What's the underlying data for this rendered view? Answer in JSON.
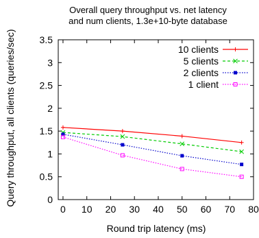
{
  "chart_data": {
    "type": "line",
    "title_lines": [
      "Overall query throughput vs. net latency",
      "and num clients, 1.3e+10-byte database"
    ],
    "xlabel": "Round trip latency (ms)",
    "ylabel": "Query throughput, all clients (queries/sec)",
    "xlim": [
      -2,
      80
    ],
    "ylim": [
      0,
      3.5
    ],
    "xticks": [
      "0",
      "10",
      "20",
      "30",
      "40",
      "50",
      "60",
      "70",
      "80"
    ],
    "yticks": [
      "0",
      "0.5",
      "1",
      "1.5",
      "2",
      "2.5",
      "3",
      "3.5"
    ],
    "grid": false,
    "legend_position": "top-right",
    "series": [
      {
        "name": "10 clients",
        "color": "#ff0000",
        "dash": "solid",
        "marker": "plus",
        "x": [
          0,
          25,
          50,
          75
        ],
        "y": [
          1.58,
          1.5,
          1.39,
          1.25
        ]
      },
      {
        "name": "5 clients",
        "color": "#00cc00",
        "dash": "dashed",
        "marker": "cross",
        "x": [
          0,
          25,
          50,
          75
        ],
        "y": [
          1.47,
          1.38,
          1.22,
          1.05
        ]
      },
      {
        "name": "2 clients",
        "color": "#0000cc",
        "dash": "dotted",
        "marker": "filled-square",
        "x": [
          0,
          25,
          50,
          75
        ],
        "y": [
          1.43,
          1.2,
          0.96,
          0.77
        ]
      },
      {
        "name": "1 client",
        "color": "#ff00ff",
        "dash": "dotted",
        "marker": "open-square",
        "x": [
          0,
          25,
          50,
          75
        ],
        "y": [
          1.37,
          0.97,
          0.67,
          0.5
        ]
      }
    ]
  }
}
